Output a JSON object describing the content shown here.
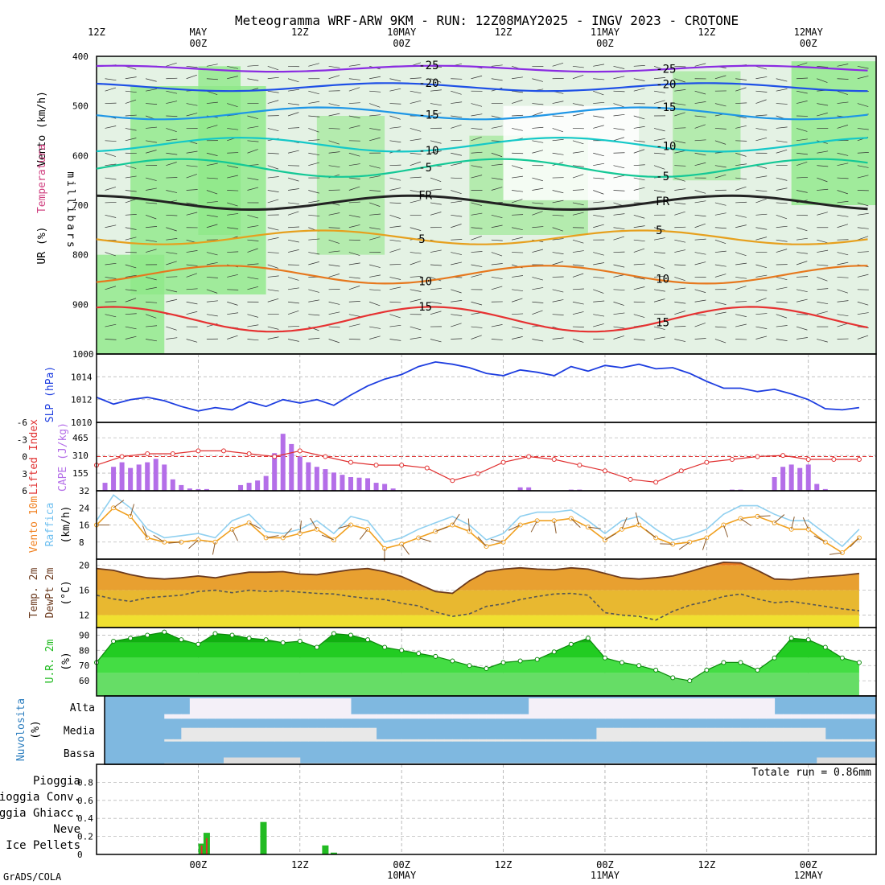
{
  "title": "Meteogramma WRF-ARW 9KM - RUN: 12Z08MAY2025 - INGV 2023 - CROTONE",
  "footer": "GrADS/COLA",
  "time_axis": {
    "top_labels": [
      {
        "hour": 0,
        "l1": "12Z",
        "l2": ""
      },
      {
        "hour": 12,
        "l1": "MAY",
        "l2": "00Z"
      },
      {
        "hour": 24,
        "l1": "12Z",
        "l2": ""
      },
      {
        "hour": 36,
        "l1": "10MAY",
        "l2": "00Z"
      },
      {
        "hour": 48,
        "l1": "12Z",
        "l2": ""
      },
      {
        "hour": 60,
        "l1": "11MAY",
        "l2": "00Z"
      },
      {
        "hour": 72,
        "l1": "12Z",
        "l2": ""
      },
      {
        "hour": 84,
        "l1": "12MAY",
        "l2": "00Z"
      }
    ],
    "bottom_labels": [
      {
        "hour": 12,
        "l1": "00Z",
        "l2": ""
      },
      {
        "hour": 24,
        "l1": "12Z",
        "l2": ""
      },
      {
        "hour": 36,
        "l1": "00Z",
        "l2": "10MAY"
      },
      {
        "hour": 48,
        "l1": "12Z",
        "l2": ""
      },
      {
        "hour": 60,
        "l1": "00Z",
        "l2": "11MAY"
      },
      {
        "hour": 72,
        "l1": "12Z",
        "l2": ""
      },
      {
        "hour": 84,
        "l1": "00Z",
        "l2": "12MAY"
      }
    ]
  },
  "panels": {
    "profile": {
      "labels": [
        "Vento (km/h)",
        "Temperatura",
        "UR (%)",
        "millibars"
      ],
      "pressure_ticks": [
        "400",
        "500",
        "600",
        "700",
        "800",
        "900",
        "1000"
      ],
      "freezing_label": "FR",
      "isotherm_labels": [
        "-25",
        "-20",
        "-15",
        "-10",
        "-5",
        "5",
        "10",
        "15"
      ],
      "colors": {
        "-25": "#8a2be2",
        "-20": "#1e50e6",
        "-15": "#1e96e6",
        "-10": "#14c8c8",
        "-5": "#14c896",
        "5": "#e6a01e",
        "10": "#e6781e",
        "15": "#e63232",
        "FR": "#222222"
      }
    },
    "slp": {
      "label": "SLP (hPa)",
      "ticks": [
        "1010",
        "1012",
        "1014"
      ]
    },
    "cape_li": {
      "label_li": "Lifted Index",
      "label_cape": "CAPE (J/kg)",
      "li_ticks": [
        "-6",
        "-3",
        "0",
        "3",
        "6"
      ],
      "cape_ticks": [
        "155",
        "310",
        "465"
      ]
    },
    "wind10": {
      "label_wind": "Vento 10m",
      "label_gust": "Raffica",
      "unit": "(km/h)",
      "ticks": [
        "8",
        "16",
        "24",
        "32"
      ]
    },
    "temp2m": {
      "label_temp": "Temp. 2m",
      "label_dew": "DewPt 2m",
      "unit": "(°C)",
      "ticks": [
        "12",
        "16",
        "20"
      ]
    },
    "rh2m": {
      "label": "U.R. 2m",
      "unit": "(%)",
      "ticks": [
        "60",
        "70",
        "80",
        "90"
      ]
    },
    "clouds": {
      "label": "Nuvolosita",
      "unit": "(%)",
      "levels": [
        "Alta",
        "Media",
        "Bassa"
      ]
    },
    "precip": {
      "legend": [
        "Pioggia",
        "Pioggia Conv.",
        "Pioggia Ghiacc.",
        "Neve",
        "Ice Pellets"
      ],
      "legend_colors": [
        "#22bb22",
        "#e03030",
        "#f08020",
        "#2020e0",
        "#20c0d0"
      ],
      "ticks": [
        "0",
        "0.2",
        "0.4",
        "0.6",
        "0.8"
      ],
      "total": "Totale run = 0.86mm"
    }
  },
  "chart_data": [
    {
      "type": "line",
      "title": "SLP (hPa)",
      "x_hours": [
        0,
        2,
        4,
        6,
        8,
        10,
        12,
        14,
        16,
        18,
        20,
        22,
        24,
        26,
        28,
        30,
        32,
        34,
        36,
        38,
        40,
        42,
        44,
        46,
        48,
        50,
        52,
        54,
        56,
        58,
        60,
        62,
        64,
        66,
        68,
        70,
        72,
        74,
        76,
        78,
        80,
        82,
        84,
        86,
        88,
        90
      ],
      "values": [
        1012.2,
        1011.6,
        1012.0,
        1012.2,
        1011.9,
        1011.4,
        1011.0,
        1011.3,
        1011.1,
        1011.8,
        1011.4,
        1012.0,
        1011.7,
        1012.0,
        1011.5,
        1012.4,
        1013.2,
        1013.8,
        1014.2,
        1014.9,
        1015.3,
        1015.1,
        1014.8,
        1014.3,
        1014.1,
        1014.6,
        1014.4,
        1014.1,
        1014.9,
        1014.5,
        1015.0,
        1014.8,
        1015.1,
        1014.7,
        1014.8,
        1014.3,
        1013.6,
        1013.0,
        1013.0,
        1012.7,
        1012.9,
        1012.5,
        1012.0,
        1011.2,
        1011.1,
        1011.3
      ],
      "ylim": [
        1010,
        1016
      ]
    },
    {
      "type": "bar",
      "title": "CAPE (J/kg)",
      "x_hours": [
        1,
        2,
        3,
        4,
        5,
        6,
        7,
        8,
        9,
        10,
        11,
        12,
        13,
        17,
        18,
        19,
        20,
        21,
        22,
        23,
        24,
        25,
        26,
        27,
        28,
        29,
        30,
        31,
        32,
        33,
        34,
        35,
        50,
        51,
        56,
        57,
        75,
        76,
        80,
        81,
        82,
        83,
        84,
        85,
        86
      ],
      "values": [
        70,
        210,
        250,
        200,
        230,
        250,
        280,
        230,
        100,
        50,
        20,
        15,
        15,
        50,
        70,
        90,
        130,
        330,
        500,
        410,
        300,
        250,
        210,
        190,
        160,
        140,
        120,
        115,
        110,
        70,
        60,
        20,
        30,
        30,
        10,
        10,
        10,
        10,
        120,
        210,
        230,
        200,
        230,
        60,
        15
      ],
      "ylim": [
        0,
        600
      ]
    },
    {
      "type": "line",
      "title": "Lifted Index",
      "x_hours": [
        0,
        3,
        6,
        9,
        12,
        15,
        18,
        21,
        24,
        27,
        30,
        33,
        36,
        39,
        42,
        45,
        48,
        51,
        54,
        57,
        60,
        63,
        66,
        69,
        72,
        75,
        78,
        81,
        84,
        87,
        90
      ],
      "values": [
        1.5,
        0,
        -0.5,
        -0.5,
        -1,
        -1,
        -0.5,
        0,
        -1,
        0,
        1,
        1.5,
        1.5,
        2,
        4.2,
        3,
        1,
        0,
        0.5,
        1.5,
        2.5,
        4,
        4.5,
        2.5,
        1,
        0.5,
        0,
        -0.2,
        0.5,
        0.5,
        0.5
      ],
      "ylim": [
        -6,
        6
      ]
    },
    {
      "type": "line",
      "title": "Vento 10m (km/h)",
      "x_hours": [
        0,
        2,
        4,
        6,
        8,
        10,
        12,
        14,
        16,
        18,
        20,
        22,
        24,
        26,
        28,
        30,
        32,
        34,
        36,
        38,
        40,
        42,
        44,
        46,
        48,
        50,
        52,
        54,
        56,
        58,
        60,
        62,
        64,
        66,
        68,
        70,
        72,
        74,
        76,
        78,
        80,
        82,
        84,
        86,
        88,
        90
      ],
      "values": [
        16,
        24,
        20,
        10,
        8,
        8,
        9,
        8,
        14,
        17,
        10,
        10,
        12,
        14,
        9,
        16,
        14,
        5,
        7,
        10,
        13,
        16,
        13,
        6,
        8,
        16,
        18,
        18,
        19,
        15,
        9,
        14,
        16,
        10,
        7,
        8,
        10,
        16,
        19,
        20,
        17,
        14,
        14,
        8,
        3,
        10
      ],
      "ylim": [
        0,
        32
      ]
    },
    {
      "type": "line",
      "title": "Raffica (km/h)",
      "x_hours": [
        0,
        2,
        4,
        6,
        8,
        10,
        12,
        14,
        16,
        18,
        20,
        22,
        24,
        26,
        28,
        30,
        32,
        34,
        36,
        38,
        40,
        42,
        44,
        46,
        48,
        50,
        52,
        54,
        56,
        58,
        60,
        62,
        64,
        66,
        68,
        70,
        72,
        74,
        76,
        78,
        80,
        82,
        84,
        86,
        88,
        90
      ],
      "values": [
        18,
        30,
        24,
        14,
        10,
        11,
        12,
        10,
        18,
        21,
        13,
        12,
        14,
        18,
        12,
        20,
        18,
        8,
        10,
        14,
        17,
        20,
        16,
        9,
        12,
        20,
        22,
        22,
        23,
        18,
        12,
        18,
        20,
        14,
        9,
        11,
        14,
        21,
        25,
        25,
        21,
        18,
        18,
        12,
        6,
        14
      ],
      "ylim": [
        0,
        32
      ]
    },
    {
      "type": "area",
      "title": "Temp. 2m (°C)",
      "x_hours": [
        0,
        2,
        4,
        6,
        8,
        10,
        12,
        14,
        16,
        18,
        20,
        22,
        24,
        26,
        28,
        30,
        32,
        34,
        36,
        38,
        40,
        42,
        44,
        46,
        48,
        50,
        52,
        54,
        56,
        58,
        60,
        62,
        64,
        66,
        68,
        70,
        72,
        74,
        76,
        78,
        80,
        82,
        84,
        86,
        88,
        90
      ],
      "values": [
        19.5,
        19.2,
        18.5,
        18.0,
        17.8,
        18.0,
        18.3,
        18.0,
        18.5,
        18.9,
        18.9,
        19.0,
        18.6,
        18.5,
        18.9,
        19.3,
        19.5,
        19.0,
        18.2,
        17.0,
        15.8,
        15.5,
        17.5,
        19.0,
        19.4,
        19.6,
        19.4,
        19.3,
        19.6,
        19.4,
        18.7,
        18.0,
        17.8,
        18.0,
        18.3,
        19.0,
        19.8,
        20.5,
        20.4,
        19.2,
        17.8,
        17.7,
        18.0,
        18.2,
        18.4,
        18.7
      ],
      "ylim": [
        10,
        21
      ]
    },
    {
      "type": "line",
      "title": "DewPt 2m (°C)",
      "x_hours": [
        0,
        2,
        4,
        6,
        8,
        10,
        12,
        14,
        16,
        18,
        20,
        22,
        24,
        26,
        28,
        30,
        32,
        34,
        36,
        38,
        40,
        42,
        44,
        46,
        48,
        50,
        52,
        54,
        56,
        58,
        60,
        62,
        64,
        66,
        68,
        70,
        72,
        74,
        76,
        78,
        80,
        82,
        84,
        86,
        88,
        90
      ],
      "values": [
        15.2,
        14.6,
        14.2,
        14.8,
        15.0,
        15.2,
        15.8,
        16.0,
        15.6,
        16.0,
        15.8,
        15.9,
        15.7,
        15.5,
        15.4,
        15.0,
        14.7,
        14.5,
        13.9,
        13.5,
        12.5,
        11.8,
        12.2,
        13.4,
        13.8,
        14.5,
        15.0,
        15.4,
        15.5,
        15.2,
        12.4,
        12.0,
        11.8,
        11.2,
        12.6,
        13.6,
        14.2,
        15.0,
        15.4,
        14.6,
        14.0,
        14.2,
        13.8,
        13.4,
        13.0,
        12.7
      ],
      "ylim": [
        10,
        21
      ]
    },
    {
      "type": "area",
      "title": "U.R. 2m (%)",
      "x_hours": [
        0,
        2,
        4,
        6,
        8,
        10,
        12,
        14,
        16,
        18,
        20,
        22,
        24,
        26,
        28,
        30,
        32,
        34,
        36,
        38,
        40,
        42,
        44,
        46,
        48,
        50,
        52,
        54,
        56,
        58,
        60,
        62,
        64,
        66,
        68,
        70,
        72,
        74,
        76,
        78,
        80,
        82,
        84,
        86,
        88,
        90
      ],
      "values": [
        72,
        86,
        88,
        90,
        92,
        87,
        84,
        91,
        90,
        88,
        87,
        85,
        86,
        82,
        91,
        90,
        87,
        82,
        80,
        78,
        76,
        73,
        70,
        68,
        72,
        73,
        74,
        79,
        84,
        88,
        75,
        72,
        70,
        67,
        62,
        60,
        67,
        72,
        72,
        67,
        75,
        88,
        87,
        82,
        75,
        72
      ],
      "ylim": [
        50,
        95
      ]
    },
    {
      "type": "bar",
      "title": "Pioggia (mm)",
      "x_hours": [
        12.4,
        13.0,
        19.7,
        27.0,
        28.0
      ],
      "values": [
        0.12,
        0.24,
        0.36,
        0.1,
        0.02
      ],
      "ylim": [
        0,
        1
      ]
    },
    {
      "type": "bar",
      "title": "Pioggia Conv. (mm)",
      "x_hours": [
        12.4,
        13.0
      ],
      "values": [
        0.1,
        0.18
      ],
      "ylim": [
        0,
        1
      ]
    }
  ]
}
